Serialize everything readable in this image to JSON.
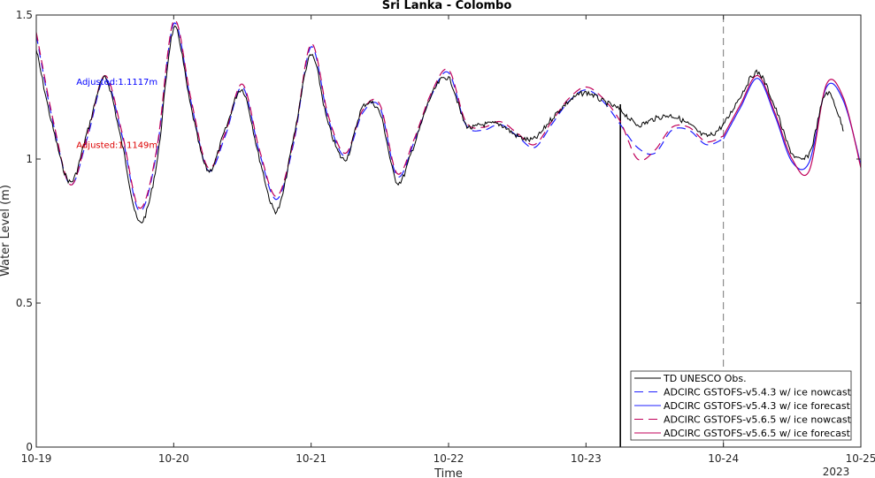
{
  "chart_data": {
    "type": "line",
    "title": "Sri Lanka - Colombo",
    "xlabel": "Time",
    "ylabel": "Water Level (m)",
    "xlim": [
      "10-19",
      "10-25"
    ],
    "ylim": [
      0,
      1.5
    ],
    "x_ticks": [
      "10-19",
      "10-20",
      "10-21",
      "10-22",
      "10-23",
      "10-24",
      "10-25"
    ],
    "y_ticks": [
      "0",
      "0.5",
      "1",
      "1.5"
    ],
    "year_label": "2023",
    "grid": false,
    "legend_position": "bottom-right",
    "nowcast_forecast_boundary": "10-24",
    "observation_end": "10-23 06:00",
    "annotations": [
      {
        "text": "Adjusted:1.1117m",
        "color": "#0000ff",
        "x": "10-19 07:00",
        "y": 1.27
      },
      {
        "text": "Adjusted:1.1149m",
        "color": "#dd0000",
        "x": "10-19 07:00",
        "y": 1.05
      }
    ],
    "series": [
      {
        "name": "TD UNESCO Obs.",
        "color": "#000000",
        "style": "solid",
        "x": [
          "10-19 00:00",
          "10-19 03:00",
          "10-19 06:00",
          "10-19 09:00",
          "10-19 12:00",
          "10-19 15:00",
          "10-19 18:00",
          "10-19 21:00",
          "10-20 00:00",
          "10-20 03:00",
          "10-20 06:00",
          "10-20 09:00",
          "10-20 12:00",
          "10-20 15:00",
          "10-20 18:00",
          "10-20 21:00",
          "10-21 00:00",
          "10-21 03:00",
          "10-21 06:00",
          "10-21 09:00",
          "10-21 12:00",
          "10-21 15:00",
          "10-21 18:00",
          "10-21 21:00",
          "10-22 00:00",
          "10-22 03:00",
          "10-22 06:00",
          "10-22 09:00",
          "10-22 12:00",
          "10-22 15:00",
          "10-22 18:00",
          "10-22 21:00",
          "10-23 00:00",
          "10-23 03:00",
          "10-23 06:00",
          "10-23 09:00",
          "10-23 12:00",
          "10-23 15:00",
          "10-23 18:00",
          "10-23 21:00",
          "10-24 00:00",
          "10-24 03:00",
          "10-24 06:00",
          "10-24 09:00",
          "10-24 12:00",
          "10-24 15:00",
          "10-24 18:00",
          "10-24 21:00"
        ],
        "y": [
          1.38,
          1.1,
          0.92,
          1.1,
          1.28,
          1.05,
          0.78,
          0.98,
          1.45,
          1.18,
          0.96,
          1.1,
          1.24,
          1.0,
          0.82,
          1.08,
          1.36,
          1.12,
          1.0,
          1.18,
          1.16,
          0.92,
          1.05,
          1.22,
          1.28,
          1.12,
          1.12,
          1.12,
          1.08,
          1.07,
          1.14,
          1.2,
          1.23,
          1.2,
          1.17,
          1.12,
          1.14,
          1.15,
          1.12,
          1.08,
          1.12,
          1.22,
          1.3,
          1.18,
          1.02,
          1.02,
          1.23,
          1.1
        ]
      },
      {
        "name": "ADCIRC GSTOFS-v5.4.3 w/ ice nowcast",
        "color": "#1f1fff",
        "style": "dashed",
        "x": [
          "10-19 00:00",
          "10-19 03:00",
          "10-19 06:00",
          "10-19 09:00",
          "10-19 12:00",
          "10-19 15:00",
          "10-19 18:00",
          "10-19 21:00",
          "10-20 00:00",
          "10-20 03:00",
          "10-20 06:00",
          "10-20 09:00",
          "10-20 12:00",
          "10-20 15:00",
          "10-20 18:00",
          "10-20 21:00",
          "10-21 00:00",
          "10-21 03:00",
          "10-21 06:00",
          "10-21 09:00",
          "10-21 12:00",
          "10-21 15:00",
          "10-21 18:00",
          "10-21 21:00",
          "10-22 00:00",
          "10-22 03:00",
          "10-22 06:00",
          "10-22 09:00",
          "10-22 12:00",
          "10-22 15:00",
          "10-22 18:00",
          "10-22 21:00",
          "10-23 00:00",
          "10-23 03:00",
          "10-23 06:00",
          "10-23 09:00",
          "10-23 12:00",
          "10-23 15:00",
          "10-23 18:00",
          "10-23 21:00",
          "10-24 00:00"
        ],
        "y": [
          1.43,
          1.12,
          0.91,
          1.08,
          1.28,
          1.08,
          0.82,
          1.02,
          1.47,
          1.2,
          0.96,
          1.08,
          1.25,
          1.02,
          0.86,
          1.06,
          1.39,
          1.14,
          1.01,
          1.16,
          1.18,
          0.94,
          1.06,
          1.22,
          1.3,
          1.12,
          1.1,
          1.12,
          1.08,
          1.04,
          1.12,
          1.2,
          1.24,
          1.2,
          1.12,
          1.04,
          1.02,
          1.1,
          1.1,
          1.05,
          1.07
        ]
      },
      {
        "name": "ADCIRC GSTOFS-v5.4.3 w/ ice forecast",
        "color": "#1f1fff",
        "style": "solid",
        "x": [
          "10-24 00:00",
          "10-24 03:00",
          "10-24 06:00",
          "10-24 09:00",
          "10-24 12:00",
          "10-24 15:00",
          "10-24 18:00",
          "10-24 21:00",
          "10-25 00:00"
        ],
        "y": [
          1.07,
          1.18,
          1.28,
          1.15,
          0.99,
          0.99,
          1.25,
          1.2,
          0.98
        ]
      },
      {
        "name": "ADCIRC GSTOFS-v5.6.5 w/ ice nowcast",
        "color": "#c0005a",
        "style": "dashed",
        "x": [
          "10-19 00:00",
          "10-19 03:00",
          "10-19 06:00",
          "10-19 09:00",
          "10-19 12:00",
          "10-19 15:00",
          "10-19 18:00",
          "10-19 21:00",
          "10-20 00:00",
          "10-20 03:00",
          "10-20 06:00",
          "10-20 09:00",
          "10-20 12:00",
          "10-20 15:00",
          "10-20 18:00",
          "10-20 21:00",
          "10-21 00:00",
          "10-21 03:00",
          "10-21 06:00",
          "10-21 09:00",
          "10-21 12:00",
          "10-21 15:00",
          "10-21 18:00",
          "10-21 21:00",
          "10-22 00:00",
          "10-22 03:00",
          "10-22 06:00",
          "10-22 09:00",
          "10-22 12:00",
          "10-22 15:00",
          "10-22 18:00",
          "10-22 21:00",
          "10-23 00:00",
          "10-23 03:00",
          "10-23 06:00",
          "10-23 09:00",
          "10-23 12:00",
          "10-23 15:00",
          "10-23 18:00",
          "10-23 21:00",
          "10-24 00:00"
        ],
        "y": [
          1.44,
          1.13,
          0.91,
          1.09,
          1.29,
          1.09,
          0.83,
          1.03,
          1.48,
          1.21,
          0.97,
          1.09,
          1.26,
          1.03,
          0.87,
          1.07,
          1.4,
          1.15,
          1.02,
          1.17,
          1.19,
          0.95,
          1.07,
          1.23,
          1.31,
          1.13,
          1.11,
          1.13,
          1.09,
          1.05,
          1.13,
          1.21,
          1.25,
          1.21,
          1.13,
          1.0,
          1.03,
          1.11,
          1.11,
          1.06,
          1.08
        ]
      },
      {
        "name": "ADCIRC GSTOFS-v5.6.5 w/ ice forecast",
        "color": "#c0005a",
        "style": "solid",
        "x": [
          "10-24 00:00",
          "10-24 03:00",
          "10-24 06:00",
          "10-24 09:00",
          "10-24 12:00",
          "10-24 15:00",
          "10-24 18:00",
          "10-24 21:00",
          "10-25 00:00"
        ],
        "y": [
          1.08,
          1.19,
          1.29,
          1.16,
          1.0,
          0.96,
          1.26,
          1.21,
          0.97
        ]
      }
    ]
  }
}
